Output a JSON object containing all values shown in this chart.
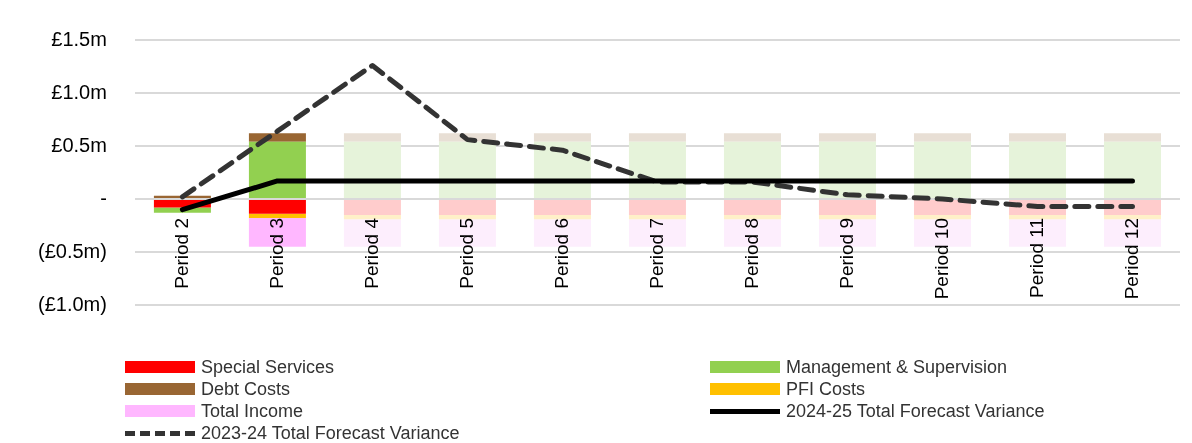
{
  "chart_data": {
    "type": "bar",
    "stacked": true,
    "grid": "y",
    "legend": "bottom",
    "categories": [
      "Period 2",
      "Period 3",
      "Period 4",
      "Period 5",
      "Period 6",
      "Period 7",
      "Period 8",
      "Period 9",
      "Period 10",
      "Period 11",
      "Period 12"
    ],
    "ylim": [
      -1.0,
      1.5
    ],
    "yticks": [
      {
        "value": -1.0,
        "label": "(£1.0m)"
      },
      {
        "value": -0.5,
        "label": "(£0.5m)"
      },
      {
        "value": 0,
        "label": "-"
      },
      {
        "value": 0.5,
        "label": "£0.5m"
      },
      {
        "value": 1.0,
        "label": "£1.0m"
      },
      {
        "value": 1.5,
        "label": "£1.5m"
      }
    ],
    "series": [
      {
        "name": "Special Services",
        "color": "#ff0000",
        "colors": [
          "#ff0000",
          "#ff0000",
          "#ffcccc",
          "#ffcccc",
          "#ffcccc",
          "#ffcccc",
          "#ffcccc",
          "#ffcccc",
          "#ffcccc",
          "#ffcccc",
          "#ffcccc"
        ],
        "values": [
          -0.08,
          -0.14,
          -0.15,
          -0.15,
          -0.15,
          -0.15,
          -0.15,
          -0.15,
          -0.15,
          -0.15,
          -0.15
        ]
      },
      {
        "name": "Management & Supervision",
        "color": "#92d050",
        "colors": [
          "#92d050",
          "#92d050",
          "#e6f3da",
          "#e6f3da",
          "#e6f3da",
          "#e6f3da",
          "#e6f3da",
          "#e6f3da",
          "#e6f3da",
          "#e6f3da",
          "#e6f3da"
        ],
        "values": [
          -0.05,
          0.54,
          0.54,
          0.54,
          0.54,
          0.54,
          0.54,
          0.54,
          0.54,
          0.54,
          0.54
        ]
      },
      {
        "name": "Debt Costs",
        "color": "#996633",
        "colors": [
          "#996633",
          "#996633",
          "#e8dfd5",
          "#e8dfd5",
          "#e8dfd5",
          "#e8dfd5",
          "#e8dfd5",
          "#e8dfd5",
          "#e8dfd5",
          "#e8dfd5",
          "#e8dfd5"
        ],
        "values": [
          0.03,
          0.08,
          0.08,
          0.08,
          0.08,
          0.08,
          0.08,
          0.08,
          0.08,
          0.08,
          0.08
        ]
      },
      {
        "name": "PFI Costs",
        "color": "#ffc000",
        "colors": [
          "#ffc000",
          "#ffc000",
          "#fff0c8",
          "#fff0c8",
          "#fff0c8",
          "#fff0c8",
          "#fff0c8",
          "#fff0c8",
          "#fff0c8",
          "#fff0c8",
          "#fff0c8"
        ],
        "values": [
          0,
          -0.04,
          -0.04,
          -0.04,
          -0.04,
          -0.04,
          -0.04,
          -0.04,
          -0.04,
          -0.04,
          -0.04
        ]
      },
      {
        "name": "Total Income",
        "color": "#ffb7ff",
        "colors": [
          "#ffb7ff",
          "#ffb7ff",
          "#fdeefd",
          "#fdeefd",
          "#fdeefd",
          "#fdeefd",
          "#fdeefd",
          "#fdeefd",
          "#fdeefd",
          "#fdeefd",
          "#fdeefd"
        ],
        "values": [
          0,
          -0.27,
          -0.26,
          -0.26,
          -0.26,
          -0.26,
          -0.26,
          -0.26,
          -0.26,
          -0.26,
          -0.26
        ]
      },
      {
        "name": "2024-25 Total Forecast Variance",
        "type": "line",
        "color": "#000000",
        "line_style": "solid",
        "values": [
          -0.1,
          0.17,
          0.17,
          0.17,
          0.17,
          0.17,
          0.17,
          0.17,
          0.17,
          0.17,
          0.17
        ]
      },
      {
        "name": "2023-24 Total Forecast Variance",
        "type": "line",
        "color": "#333333",
        "line_style": "dashed",
        "values": [
          0.02,
          0.64,
          1.26,
          0.56,
          0.46,
          0.16,
          0.16,
          0.04,
          0.0,
          -0.07,
          -0.07
        ]
      }
    ]
  }
}
